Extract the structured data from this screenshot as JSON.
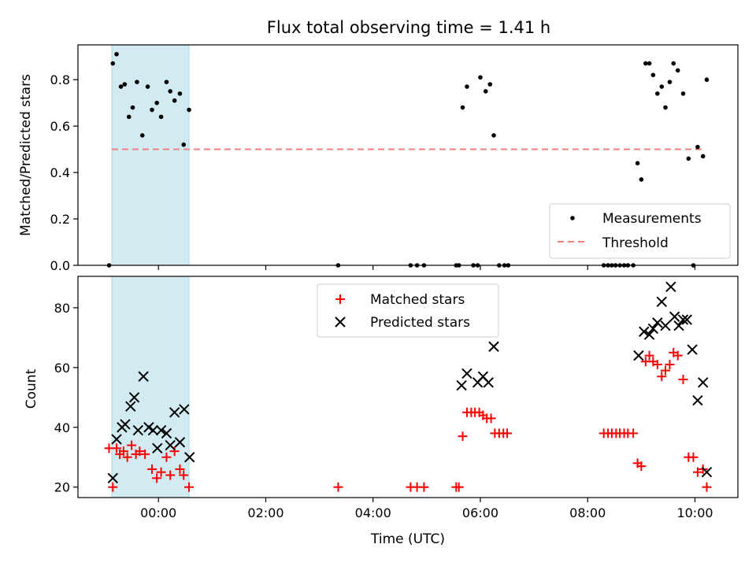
{
  "figure": {
    "title": "Flux total observing time = 1.41 h"
  },
  "colors": {
    "measurement": "#000000",
    "threshold": "#f08080",
    "matched": "#ff0000",
    "predicted": "#000000",
    "span": "#add8e6"
  },
  "chart_data": [
    {
      "type": "scatter",
      "title": "Flux total observing time = 1.41 h",
      "xlabel": "",
      "ylabel": "Matched/Predicted stars",
      "xlim": [
        -1.5,
        10.8
      ],
      "ylim": [
        0,
        0.95
      ],
      "x_tick_labels": [],
      "y_tick_labels": [
        "0.0",
        "0.2",
        "0.4",
        "0.6",
        "0.8"
      ],
      "grid": false,
      "legend": {
        "position": "lower right",
        "entries": [
          "Measurements",
          "Threshold"
        ]
      },
      "highlight_span": {
        "x": [
          -0.87,
          0.57
        ]
      },
      "threshold": {
        "name": "Threshold",
        "value": 0.5,
        "x": [
          -0.87,
          10.2
        ],
        "style": "dashed"
      },
      "series": [
        {
          "name": "Measurements",
          "points": [
            [
              -0.92,
              0.0
            ],
            [
              -0.85,
              0.87
            ],
            [
              -0.78,
              0.91
            ],
            [
              -0.7,
              0.77
            ],
            [
              -0.63,
              0.78
            ],
            [
              -0.55,
              0.64
            ],
            [
              -0.48,
              0.68
            ],
            [
              -0.4,
              0.79
            ],
            [
              -0.3,
              0.56
            ],
            [
              -0.2,
              0.77
            ],
            [
              -0.12,
              0.67
            ],
            [
              -0.03,
              0.7
            ],
            [
              0.05,
              0.64
            ],
            [
              0.15,
              0.79
            ],
            [
              0.22,
              0.75
            ],
            [
              0.3,
              0.71
            ],
            [
              0.4,
              0.74
            ],
            [
              0.47,
              0.52
            ],
            [
              0.57,
              0.67
            ],
            [
              3.35,
              0.0
            ],
            [
              4.7,
              0.0
            ],
            [
              4.82,
              0.0
            ],
            [
              4.95,
              0.0
            ],
            [
              5.55,
              0.0
            ],
            [
              5.6,
              0.0
            ],
            [
              5.67,
              0.68
            ],
            [
              5.75,
              0.77
            ],
            [
              5.87,
              0.0
            ],
            [
              5.95,
              0.0
            ],
            [
              6.0,
              0.81
            ],
            [
              6.1,
              0.75
            ],
            [
              6.18,
              0.78
            ],
            [
              6.25,
              0.56
            ],
            [
              6.35,
              0.0
            ],
            [
              6.45,
              0.0
            ],
            [
              6.52,
              0.0
            ],
            [
              8.3,
              0.0
            ],
            [
              8.38,
              0.0
            ],
            [
              8.45,
              0.0
            ],
            [
              8.52,
              0.0
            ],
            [
              8.6,
              0.0
            ],
            [
              8.68,
              0.0
            ],
            [
              8.75,
              0.0
            ],
            [
              8.85,
              0.0
            ],
            [
              8.93,
              0.44
            ],
            [
              9.0,
              0.37
            ],
            [
              9.08,
              0.87
            ],
            [
              9.15,
              0.87
            ],
            [
              9.22,
              0.82
            ],
            [
              9.3,
              0.74
            ],
            [
              9.38,
              0.77
            ],
            [
              9.45,
              0.68
            ],
            [
              9.53,
              0.79
            ],
            [
              9.6,
              0.87
            ],
            [
              9.68,
              0.84
            ],
            [
              9.78,
              0.74
            ],
            [
              9.88,
              0.46
            ],
            [
              9.97,
              0.0
            ],
            [
              10.05,
              0.51
            ],
            [
              10.15,
              0.47
            ],
            [
              10.22,
              0.8
            ]
          ]
        }
      ]
    },
    {
      "type": "scatter",
      "title": "",
      "xlabel": "Time (UTC)",
      "ylabel": "Count",
      "xlim": [
        -1.5,
        10.8
      ],
      "ylim": [
        16.5,
        90.5
      ],
      "x_tick_labels": [
        "00:00",
        "02:00",
        "04:00",
        "06:00",
        "08:00",
        "10:00"
      ],
      "y_tick_labels": [
        "20",
        "40",
        "60",
        "80"
      ],
      "grid": false,
      "legend": {
        "position": "upper center",
        "entries": [
          "Matched stars",
          "Predicted stars"
        ]
      },
      "highlight_span": {
        "x": [
          -0.87,
          0.57
        ]
      },
      "series": [
        {
          "name": "Matched stars",
          "marker": "plus",
          "points": [
            [
              -0.92,
              33
            ],
            [
              -0.85,
              20
            ],
            [
              -0.78,
              33
            ],
            [
              -0.72,
              31
            ],
            [
              -0.65,
              32
            ],
            [
              -0.58,
              30
            ],
            [
              -0.5,
              34
            ],
            [
              -0.42,
              31
            ],
            [
              -0.35,
              32
            ],
            [
              -0.25,
              31
            ],
            [
              -0.12,
              26
            ],
            [
              -0.03,
              23
            ],
            [
              0.05,
              25
            ],
            [
              0.15,
              30
            ],
            [
              0.22,
              24
            ],
            [
              0.3,
              32
            ],
            [
              0.4,
              26
            ],
            [
              0.47,
              24
            ],
            [
              0.57,
              20
            ],
            [
              3.35,
              20
            ],
            [
              4.7,
              20
            ],
            [
              4.82,
              20
            ],
            [
              4.95,
              20
            ],
            [
              5.55,
              20
            ],
            [
              5.6,
              20
            ],
            [
              5.67,
              37
            ],
            [
              5.75,
              45
            ],
            [
              5.83,
              45
            ],
            [
              5.9,
              45
            ],
            [
              5.98,
              45
            ],
            [
              6.05,
              44
            ],
            [
              6.12,
              43
            ],
            [
              6.2,
              43
            ],
            [
              6.27,
              38
            ],
            [
              6.35,
              38
            ],
            [
              6.43,
              38
            ],
            [
              6.5,
              38
            ],
            [
              8.3,
              38
            ],
            [
              8.38,
              38
            ],
            [
              8.45,
              38
            ],
            [
              8.53,
              38
            ],
            [
              8.6,
              38
            ],
            [
              8.68,
              38
            ],
            [
              8.75,
              38
            ],
            [
              8.85,
              38
            ],
            [
              8.93,
              28
            ],
            [
              9.0,
              27
            ],
            [
              9.08,
              62
            ],
            [
              9.15,
              64
            ],
            [
              9.22,
              62
            ],
            [
              9.3,
              61
            ],
            [
              9.38,
              57
            ],
            [
              9.45,
              59
            ],
            [
              9.53,
              61
            ],
            [
              9.6,
              65
            ],
            [
              9.68,
              64
            ],
            [
              9.78,
              56
            ],
            [
              9.88,
              30
            ],
            [
              9.97,
              30
            ],
            [
              10.05,
              25
            ],
            [
              10.15,
              26
            ],
            [
              10.22,
              20
            ]
          ]
        },
        {
          "name": "Predicted stars",
          "marker": "x",
          "points": [
            [
              -0.85,
              23
            ],
            [
              -0.78,
              36
            ],
            [
              -0.68,
              40
            ],
            [
              -0.62,
              41
            ],
            [
              -0.52,
              47
            ],
            [
              -0.45,
              50
            ],
            [
              -0.38,
              39
            ],
            [
              -0.28,
              57
            ],
            [
              -0.18,
              40
            ],
            [
              -0.1,
              39
            ],
            [
              -0.02,
              33
            ],
            [
              0.05,
              39
            ],
            [
              0.15,
              38
            ],
            [
              0.22,
              34
            ],
            [
              0.3,
              45
            ],
            [
              0.4,
              35
            ],
            [
              0.48,
              46
            ],
            [
              0.58,
              30
            ],
            [
              5.65,
              54
            ],
            [
              5.75,
              58
            ],
            [
              5.95,
              55
            ],
            [
              6.05,
              57
            ],
            [
              6.15,
              55
            ],
            [
              6.25,
              67
            ],
            [
              8.95,
              64
            ],
            [
              9.05,
              72
            ],
            [
              9.15,
              71
            ],
            [
              9.22,
              73
            ],
            [
              9.3,
              75
            ],
            [
              9.38,
              82
            ],
            [
              9.45,
              74
            ],
            [
              9.55,
              87
            ],
            [
              9.62,
              77
            ],
            [
              9.7,
              74
            ],
            [
              9.78,
              76
            ],
            [
              9.85,
              76
            ],
            [
              9.95,
              66
            ],
            [
              10.05,
              49
            ],
            [
              10.15,
              55
            ],
            [
              10.22,
              25
            ]
          ]
        }
      ]
    }
  ]
}
